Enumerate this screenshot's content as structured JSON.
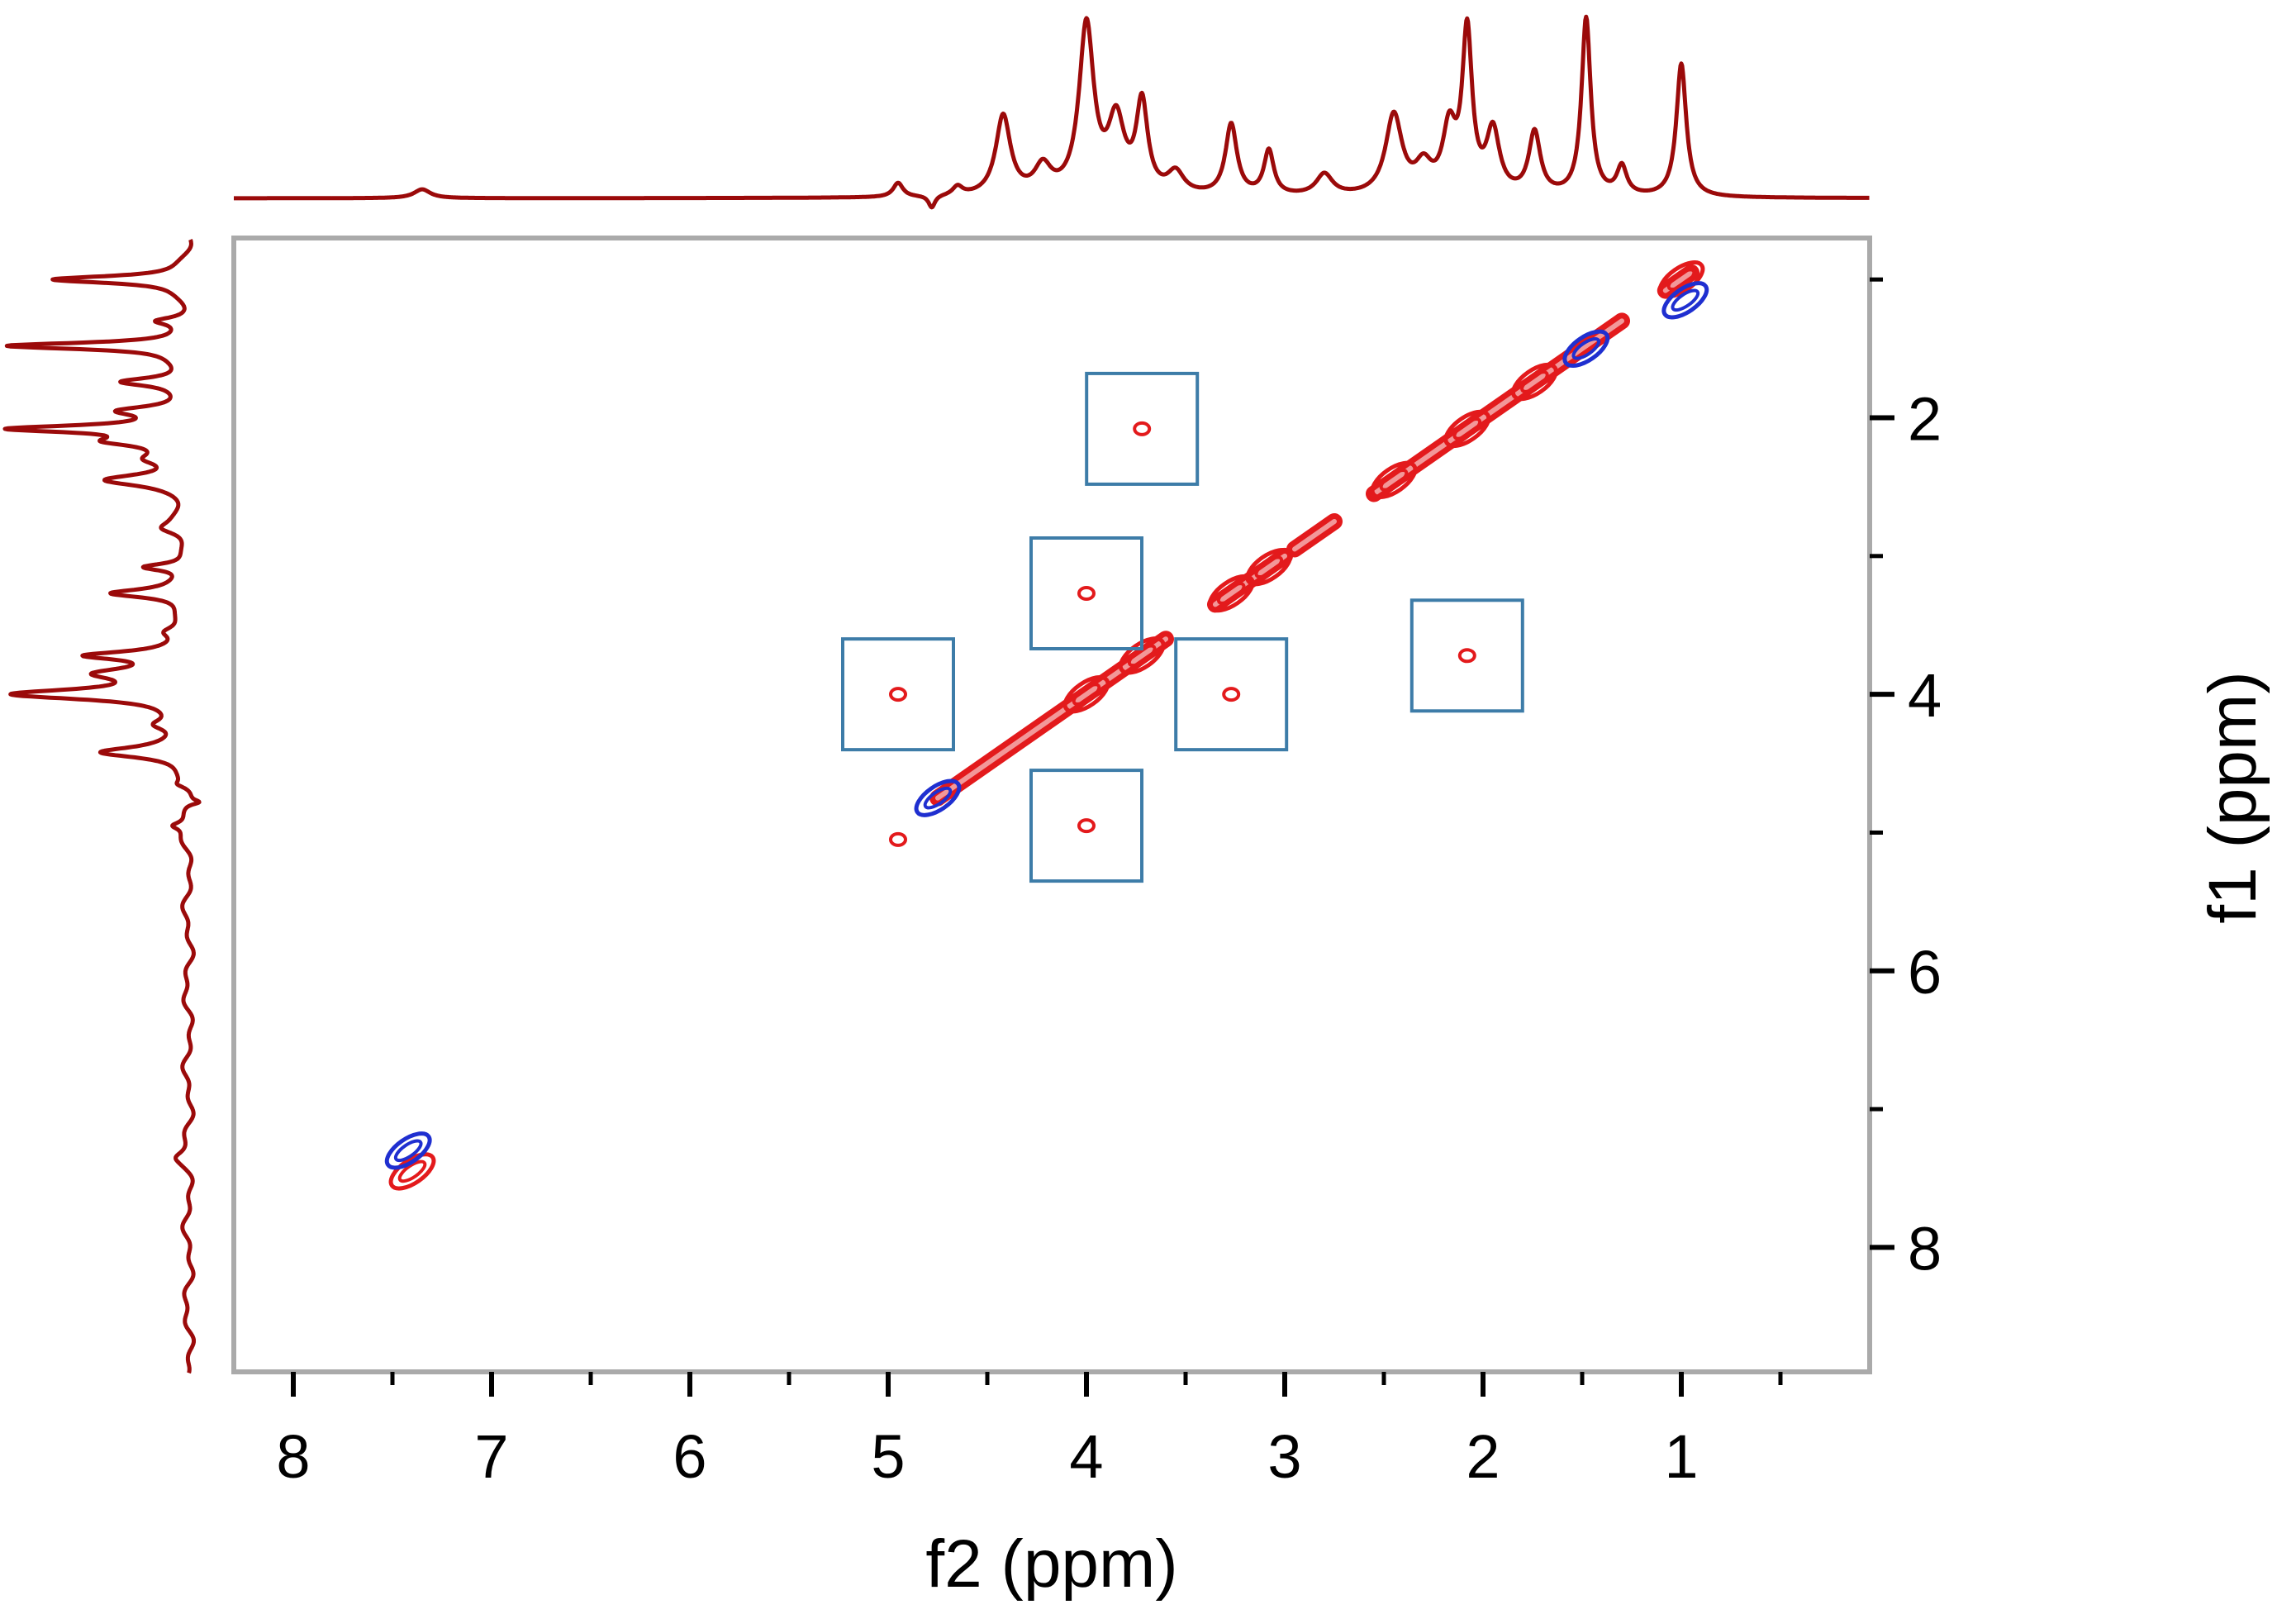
{
  "chart_data": {
    "type": "contour-2d-nmr",
    "xlabel": "f2 (ppm)",
    "ylabel": "f1 (ppm)",
    "xlim": [
      8.3,
      0.05
    ],
    "ylim": [
      0.7,
      8.9
    ],
    "x_ticks": [
      {
        "value": 8,
        "label": "8"
      },
      {
        "value": 7,
        "label": "7"
      },
      {
        "value": 6,
        "label": "6"
      },
      {
        "value": 5,
        "label": "5"
      },
      {
        "value": 4,
        "label": "4"
      },
      {
        "value": 3,
        "label": "3"
      },
      {
        "value": 2,
        "label": "2"
      },
      {
        "value": 1,
        "label": "1"
      }
    ],
    "x_minor_ticks": [
      7.5,
      6.5,
      5.5,
      4.5,
      3.5,
      2.5,
      1.5,
      0.5
    ],
    "y_ticks": [
      {
        "value": 2,
        "label": "2"
      },
      {
        "value": 4,
        "label": "4"
      },
      {
        "value": 6,
        "label": "6"
      },
      {
        "value": 8,
        "label": "8"
      }
    ],
    "y_minor_ticks": [
      1,
      3,
      5,
      7
    ],
    "projection_peaks": [
      {
        "ppm": 7.35,
        "height": 0.05,
        "width": 0.05
      },
      {
        "ppm": 4.95,
        "height": 0.08,
        "width": 0.03
      },
      {
        "ppm": 4.78,
        "height": -0.07,
        "width": 0.02
      },
      {
        "ppm": 4.65,
        "height": 0.05,
        "width": 0.03
      },
      {
        "ppm": 4.42,
        "height": 0.45,
        "width": 0.045
      },
      {
        "ppm": 4.22,
        "height": 0.15,
        "width": 0.05
      },
      {
        "ppm": 4.0,
        "height": 0.95,
        "width": 0.045
      },
      {
        "ppm": 3.85,
        "height": 0.4,
        "width": 0.05
      },
      {
        "ppm": 3.72,
        "height": 0.5,
        "width": 0.035
      },
      {
        "ppm": 3.55,
        "height": 0.12,
        "width": 0.05
      },
      {
        "ppm": 3.27,
        "height": 0.4,
        "width": 0.035
      },
      {
        "ppm": 3.08,
        "height": 0.25,
        "width": 0.03
      },
      {
        "ppm": 2.8,
        "height": 0.12,
        "width": 0.05
      },
      {
        "ppm": 2.45,
        "height": 0.45,
        "width": 0.05
      },
      {
        "ppm": 2.3,
        "height": 0.15,
        "width": 0.05
      },
      {
        "ppm": 2.17,
        "height": 0.35,
        "width": 0.04
      },
      {
        "ppm": 2.08,
        "height": 0.9,
        "width": 0.03
      },
      {
        "ppm": 1.95,
        "height": 0.35,
        "width": 0.04
      },
      {
        "ppm": 1.74,
        "height": 0.35,
        "width": 0.035
      },
      {
        "ppm": 1.48,
        "height": 1.0,
        "width": 0.028
      },
      {
        "ppm": 1.3,
        "height": 0.16,
        "width": 0.03
      },
      {
        "ppm": 1.0,
        "height": 0.75,
        "width": 0.03
      }
    ],
    "diagonal_segments": [
      {
        "from": 4.75,
        "to": 3.6
      },
      {
        "from": 3.35,
        "to": 3.0
      },
      {
        "from": 2.95,
        "to": 2.75
      },
      {
        "from": 2.55,
        "to": 1.3
      },
      {
        "from": 1.08,
        "to": 0.95
      }
    ],
    "diagonal_peaks": [
      {
        "x": 7.4,
        "y": 7.45,
        "color": "#e31a1c"
      },
      {
        "x": 7.42,
        "y": 7.3,
        "color": "#1f2fd0"
      },
      {
        "x": 4.75,
        "y": 4.75,
        "color": "#1f2fd0"
      },
      {
        "x": 4.0,
        "y": 4.0,
        "color": "#e31a1c"
      },
      {
        "x": 3.72,
        "y": 3.72,
        "color": "#e31a1c"
      },
      {
        "x": 3.27,
        "y": 3.27,
        "color": "#e31a1c"
      },
      {
        "x": 3.08,
        "y": 3.08,
        "color": "#e31a1c"
      },
      {
        "x": 2.45,
        "y": 2.45,
        "color": "#e31a1c"
      },
      {
        "x": 2.08,
        "y": 2.08,
        "color": "#e31a1c"
      },
      {
        "x": 1.74,
        "y": 1.74,
        "color": "#e31a1c"
      },
      {
        "x": 1.48,
        "y": 1.5,
        "color": "#1f2fd0"
      },
      {
        "x": 1.0,
        "y": 1.0,
        "color": "#e31a1c"
      },
      {
        "x": 0.98,
        "y": 1.15,
        "color": "#1f2fd0"
      }
    ],
    "cross_peaks": [
      {
        "x": 3.72,
        "y": 2.08,
        "boxed": true
      },
      {
        "x": 4.0,
        "y": 3.27,
        "boxed": true
      },
      {
        "x": 4.95,
        "y": 4.0,
        "boxed": true
      },
      {
        "x": 3.27,
        "y": 4.0,
        "boxed": true
      },
      {
        "x": 2.08,
        "y": 3.72,
        "boxed": true
      },
      {
        "x": 4.0,
        "y": 4.95,
        "boxed": true
      },
      {
        "x": 4.95,
        "y": 5.05,
        "boxed": false
      }
    ],
    "colors": {
      "projection": "#9b0a0a",
      "positive_contour": "#e31a1c",
      "negative_contour": "#1f2fd0",
      "box": "#3d7ca8",
      "frame": "#aaaaaa"
    }
  }
}
